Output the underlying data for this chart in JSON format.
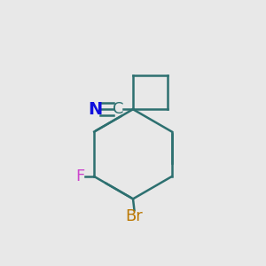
{
  "background_color": "#e8e8e8",
  "bond_color": "#2d7070",
  "bond_width": 1.8,
  "dbo": 0.012,
  "N_color": "#1010dd",
  "C_color": "#2d7070",
  "F_color": "#cc44cc",
  "Br_color": "#bb7700",
  "font_size_atom": 13,
  "figsize": [
    3.0,
    3.0
  ],
  "dpi": 100,
  "label_N": "N",
  "label_C": "C",
  "label_F": "F",
  "label_Br": "Br"
}
